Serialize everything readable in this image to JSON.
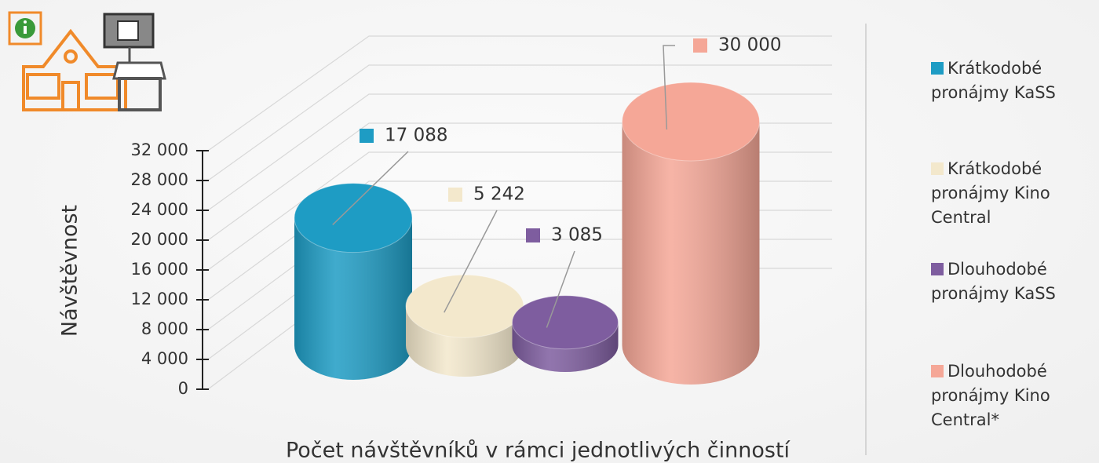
{
  "chart_data": {
    "type": "bar",
    "categories": [
      "Krátkodobé pronájmy  KaSS",
      "Krátkodobé pronájmy Kino Central",
      "Dlouhodobé pronájmy KaSS",
      "Dlouhodobé pronájmy Kino Central*"
    ],
    "values": [
      17088,
      5242,
      3085,
      30000
    ],
    "value_labels": [
      "17 088",
      "5 242",
      "3 085",
      "30 000"
    ],
    "colors": [
      "#1e9cc4",
      "#f3e8cc",
      "#7e5d9f",
      "#f5a797"
    ],
    "ylabel": "Návštěvnost",
    "xlabel": "Počet návštěvníků v rámci jednotlivých činností",
    "ylim": [
      0,
      32000
    ],
    "yticks": [
      {
        "value": 0,
        "label": "0"
      },
      {
        "value": 4000,
        "label": "4 000"
      },
      {
        "value": 8000,
        "label": "8 000"
      },
      {
        "value": 12000,
        "label": "12 000"
      },
      {
        "value": 16000,
        "label": "16 000"
      },
      {
        "value": 20000,
        "label": "20 000"
      },
      {
        "value": 24000,
        "label": "24 000"
      },
      {
        "value": 28000,
        "label": "28 000"
      },
      {
        "value": 32000,
        "label": "32 000"
      }
    ],
    "grid": true
  }
}
